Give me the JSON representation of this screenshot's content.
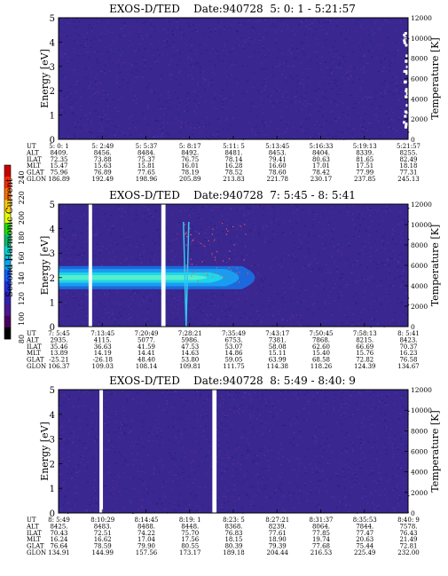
{
  "colorbar": {
    "label": "Second Harmonic Current",
    "ticks": [
      "240",
      "220",
      "200",
      "180",
      "160",
      "140",
      "120",
      "100",
      "80"
    ],
    "colors": [
      "#c80000",
      "#ff2a00",
      "#ff7000",
      "#ffcc00",
      "#e8ff00",
      "#20e000",
      "#00c070",
      "#00d8d8",
      "#00a8f0",
      "#1060ff",
      "#2030e0",
      "#3020b0",
      "#481890",
      "#480060",
      "#000000"
    ]
  },
  "chart_data": [
    {
      "type": "heatmap",
      "title": "EXOS-D/TED    Date:940728  5: 0: 1 - 5:21:57",
      "ylabel": "Energy [eV]",
      "y2label": "Temperature [K]",
      "ylim": [
        0,
        5
      ],
      "y2lim": [
        0,
        12000
      ],
      "yticks": [
        "0",
        "1",
        "2",
        "3",
        "4",
        "5"
      ],
      "y2ticks": [
        "0",
        "2000",
        "4000",
        "6000",
        "8000",
        "10000",
        "12000"
      ],
      "bg": "#3a2790",
      "gaps": [],
      "row_labels": [
        "UT",
        "ALT",
        "ILAT",
        "MLT",
        "GLAT",
        "GLON"
      ],
      "columns": [
        [
          "5: 0: 1",
          "8409.",
          "72.35",
          "15.47",
          "75.96",
          "186.89"
        ],
        [
          "5: 2:49",
          "8456.",
          "73.88",
          "15.63",
          "76.89",
          "192.49"
        ],
        [
          "5: 5:37",
          "8484.",
          "75.37",
          "15.81",
          "77.65",
          "198.96"
        ],
        [
          "5: 8:17",
          "8492.",
          "76.75",
          "16.01",
          "78.19",
          "205.89"
        ],
        [
          "5:11: 5",
          "8481.",
          "78.14",
          "16.28",
          "78.52",
          "213.83"
        ],
        [
          "5:13:45",
          "8453.",
          "79.41",
          "16.60",
          "78.60",
          "221.78"
        ],
        [
          "5:16:33",
          "8404.",
          "80.63",
          "17.01",
          "78.42",
          "230.17"
        ],
        [
          "5:19:13",
          "8339.",
          "81.65",
          "17.51",
          "77.99",
          "237.85"
        ],
        [
          "5:21:57",
          "8255.",
          "82.49",
          "18.18",
          "77.31",
          "245.13"
        ]
      ]
    },
    {
      "type": "heatmap",
      "title": "EXOS-D/TED    Date:940728  7: 5:45 - 8: 5:41",
      "ylabel": "Energy [eV]",
      "y2label": "Temperature [K]",
      "ylim": [
        0,
        5
      ],
      "y2lim": [
        0,
        12000
      ],
      "yticks": [
        "0",
        "1",
        "2",
        "3",
        "4",
        "5"
      ],
      "y2ticks": [
        "0",
        "2000",
        "4000",
        "6000",
        "8000",
        "10000",
        "12000"
      ],
      "bg": "#3a2790",
      "gaps": [
        [
          0.086,
          0.096
        ],
        [
          0.294,
          0.306
        ]
      ],
      "band": {
        "center_ev": 2.0,
        "x_end": 0.6
      },
      "row_labels": [
        "UT",
        "ALT",
        "ILAT",
        "MLT",
        "GLAT",
        "GLON"
      ],
      "columns": [
        [
          "7: 5:45",
          "2935.",
          "35.46",
          "13.89",
          "-25.21",
          "106.37"
        ],
        [
          "7:13:45",
          "4115.",
          "36.63",
          "14.19",
          "-26.18",
          "109.03"
        ],
        [
          "7:20:49",
          "5077.",
          "41.59",
          "14.41",
          "48.40",
          "108.14"
        ],
        [
          "7:28:21",
          "5986.",
          "47.53",
          "14.63",
          "53.80",
          "109.81"
        ],
        [
          "7:35:49",
          "6753.",
          "53.07",
          "14.86",
          "59.05",
          "111.75"
        ],
        [
          "7:43:17",
          "7381.",
          "58.08",
          "15.11",
          "63.99",
          "114.38"
        ],
        [
          "7:50:45",
          "7868.",
          "62.60",
          "15.40",
          "68.58",
          "118.26"
        ],
        [
          "7:58:13",
          "8215.",
          "66.69",
          "15.76",
          "72.82",
          "124.39"
        ],
        [
          "8: 5:41",
          "8423.",
          "70.37",
          "16.23",
          "76.58",
          "134.67"
        ]
      ]
    },
    {
      "type": "heatmap",
      "title": "EXOS-D/TED    Date:940728  8: 5:49 - 8:40: 9",
      "ylabel": "Energy [eV]",
      "y2label": "Temperature [K]",
      "ylim": [
        0,
        5
      ],
      "y2lim": [
        0,
        12000
      ],
      "yticks": [
        "0",
        "1",
        "2",
        "3",
        "4",
        "5"
      ],
      "y2ticks": [
        "0",
        "2000",
        "4000",
        "6000",
        "8000",
        "10000",
        "12000"
      ],
      "bg": "#3a2790",
      "gaps": [
        [
          0.117,
          0.127
        ],
        [
          0.44,
          0.452
        ]
      ],
      "row_labels": [
        "UT",
        "ALT",
        "ILAT",
        "MLT",
        "GLAT",
        "GLON"
      ],
      "columns": [
        [
          "8: 5:49",
          "8425.",
          "70.43",
          "16.24",
          "76.64",
          "134.91"
        ],
        [
          "8:10:29",
          "8483.",
          "72.51",
          "16.62",
          "78.59",
          "144.99"
        ],
        [
          "8:14:45",
          "8488.",
          "74.22",
          "17.04",
          "79.90",
          "157.56"
        ],
        [
          "8:19: 1",
          "8448.",
          "75.70",
          "17.56",
          "80.55",
          "173.17"
        ],
        [
          "8:23: 5",
          "8368.",
          "76.83",
          "18.15",
          "80.39",
          "189.18"
        ],
        [
          "8:27:21",
          "8239.",
          "77.61",
          "18.90",
          "79.39",
          "204.44"
        ],
        [
          "8:31:37",
          "8064.",
          "77.85",
          "19.74",
          "77.68",
          "216.53"
        ],
        [
          "8:35:53",
          "7844.",
          "77.47",
          "20.63",
          "75.44",
          "225.49"
        ],
        [
          "8:40: 9",
          "7578.",
          "76.43",
          "21.49",
          "72.81",
          "232.00"
        ]
      ]
    }
  ]
}
